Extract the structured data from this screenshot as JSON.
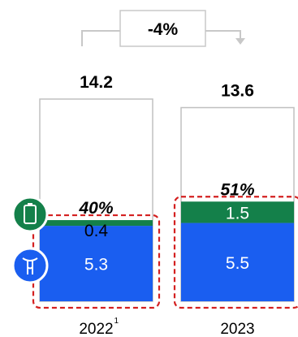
{
  "chart_data": {
    "type": "bar",
    "stacked": true,
    "categories": [
      "2022",
      "2023"
    ],
    "category_footnotes": [
      "1",
      ""
    ],
    "totals": [
      14.2,
      13.6
    ],
    "highlighted_shares": [
      "40%",
      "51%"
    ],
    "series": [
      {
        "values": [
          5.3,
          5.5
        ],
        "color": "#1a5ef0"
      },
      {
        "values": [
          0.4,
          1.5
        ],
        "color": "#14804a"
      },
      {
        "values": [
          8.5,
          6.6
        ],
        "color": "#ffffff"
      }
    ],
    "change_label": "-4%",
    "ylim": [
      0,
      14.2
    ],
    "grid": false,
    "legend": "none",
    "icons": [
      "battery-icon",
      "fuel-pump-icon"
    ],
    "colors": {
      "border": "#c0c0c0",
      "highlight_dash": "#d42020",
      "icon_outline": "#ffffff",
      "arrow": "#c8c8c8"
    }
  }
}
